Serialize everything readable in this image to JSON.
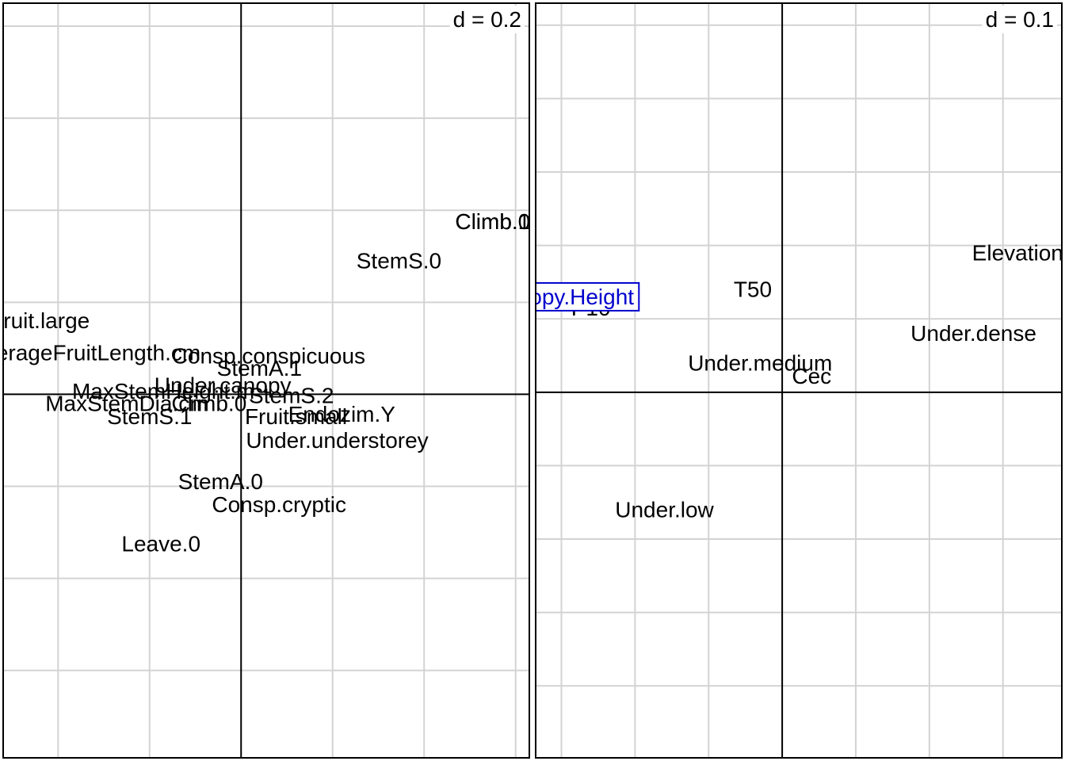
{
  "chart_data": [
    {
      "type": "scatter",
      "panel": "left",
      "scale_label": "d = 0.2",
      "grid": true,
      "xlim": [
        -0.52,
        0.63
      ],
      "ylim": [
        -0.79,
        0.85
      ],
      "colors": {
        "grid": "#d3d3d3",
        "axis": "#000000",
        "frame": "#000000",
        "text": "#000000"
      },
      "labels": [
        {
          "text": "Climb.0",
          "x": 0.55,
          "y": 0.375
        },
        {
          "text": "Climb.1",
          "x": 0.55,
          "y": 0.375
        },
        {
          "text": "StemS.0",
          "x": 0.345,
          "y": 0.29
        },
        {
          "text": "Fruit.large",
          "x": -0.44,
          "y": 0.16
        },
        {
          "text": "AverageFruitLength.cm",
          "x": -0.34,
          "y": 0.09
        },
        {
          "text": "Consp.conspicuous",
          "x": 0.06,
          "y": 0.083
        },
        {
          "text": "StemA.1",
          "x": 0.04,
          "y": 0.057
        },
        {
          "text": "Under.canopy",
          "x": -0.04,
          "y": 0.02
        },
        {
          "text": "MaxStemHeight.m",
          "x": -0.17,
          "y": 0.007
        },
        {
          "text": "StemS.2",
          "x": 0.11,
          "y": -0.003
        },
        {
          "text": "MaxStemDia.cm",
          "x": -0.25,
          "y": -0.02
        },
        {
          "text": "Climb.0",
          "x": -0.07,
          "y": -0.02
        },
        {
          "text": "StemS.1",
          "x": -0.2,
          "y": -0.048
        },
        {
          "text": "Fruit.small",
          "x": 0.12,
          "y": -0.048
        },
        {
          "text": "Endozim.Y",
          "x": 0.22,
          "y": -0.043
        },
        {
          "text": "Under.understorey",
          "x": 0.21,
          "y": -0.1
        },
        {
          "text": "StemA.0",
          "x": -0.045,
          "y": -0.19
        },
        {
          "text": "Consp.cryptic",
          "x": 0.083,
          "y": -0.24
        },
        {
          "text": "Leave.0",
          "x": -0.175,
          "y": -0.325
        }
      ]
    },
    {
      "type": "scatter",
      "panel": "right",
      "scale_label": "d = 0.1",
      "grid": true,
      "xlim": [
        -0.335,
        0.38
      ],
      "ylim": [
        -0.498,
        0.53
      ],
      "colors": {
        "grid": "#d3d3d3",
        "axis": "#000000",
        "frame": "#000000",
        "text": "#000000",
        "highlight": "#0000cd"
      },
      "labels": [
        {
          "text": "Elevation",
          "x": 0.32,
          "y": 0.19
        },
        {
          "text": "T50",
          "x": -0.04,
          "y": 0.14
        },
        {
          "text": "P10",
          "x": -0.26,
          "y": 0.115
        },
        {
          "text": "Canopy.Height",
          "x": -0.3,
          "y": 0.13,
          "highlight": true
        },
        {
          "text": "Under.dense",
          "x": 0.26,
          "y": 0.08
        },
        {
          "text": "Under.medium",
          "x": -0.03,
          "y": 0.04
        },
        {
          "text": "Cec",
          "x": 0.04,
          "y": 0.022
        },
        {
          "text": "Under.low",
          "x": -0.16,
          "y": -0.16
        }
      ]
    }
  ]
}
